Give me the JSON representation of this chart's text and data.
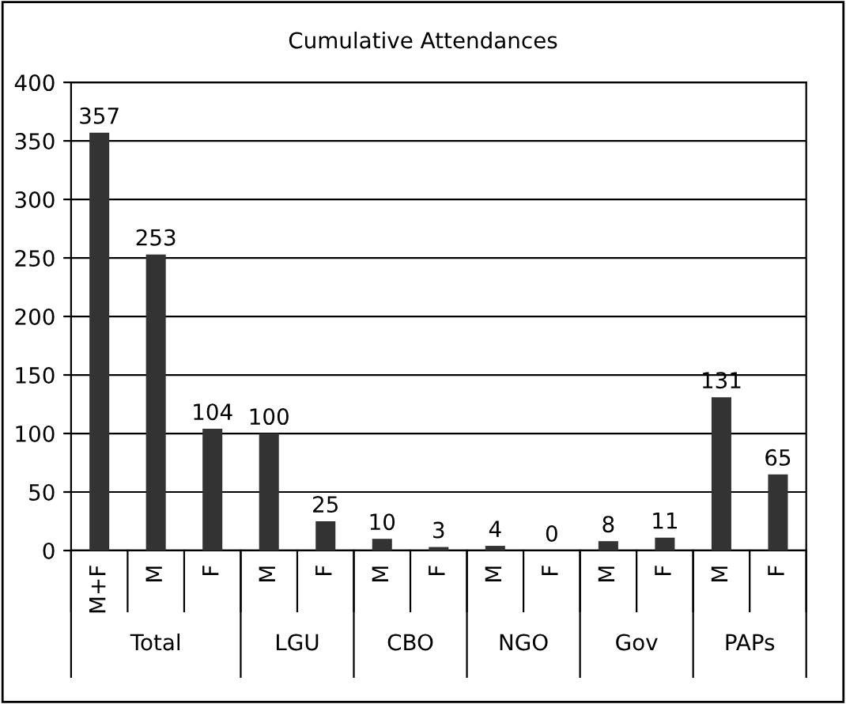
{
  "chart_data": {
    "type": "bar",
    "title": "Cumulative Attendances",
    "categories": [
      "M+F",
      "M",
      "F",
      "M",
      "F",
      "M",
      "F",
      "M",
      "F",
      "M",
      "F",
      "M",
      "F"
    ],
    "values": [
      357,
      253,
      104,
      100,
      25,
      10,
      3,
      4,
      0,
      8,
      11,
      131,
      65
    ],
    "color": "#333333",
    "ylim": [
      0,
      400
    ],
    "yticks": [
      0,
      50,
      100,
      150,
      200,
      250,
      300,
      350,
      400
    ],
    "grid": "y",
    "data_labels": true,
    "annotations": [
      "Total",
      "LGU",
      "CBO",
      "NGO",
      "Gov",
      "PAPs"
    ]
  }
}
